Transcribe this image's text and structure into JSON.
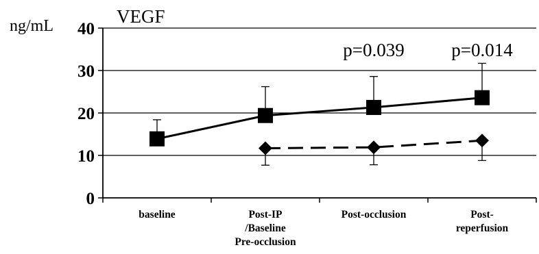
{
  "chart_data": {
    "type": "line",
    "title": "VEGF",
    "ylabel": "ng/mL",
    "ylim": [
      0,
      40
    ],
    "yticks": [
      0,
      10,
      20,
      30,
      40
    ],
    "grid": true,
    "categories": [
      [
        "baseline"
      ],
      [
        "Post-IP",
        "/Baseline",
        "Pre-occlusion"
      ],
      [
        "Post-occlusion"
      ],
      [
        "Post-",
        "reperfusion"
      ]
    ],
    "series": [
      {
        "marker": "square",
        "line_style": "solid",
        "color": "#000000",
        "values": [
          13.9,
          19.4,
          21.3,
          23.6
        ],
        "error_upper": [
          18.4,
          26.2,
          28.6,
          31.7
        ]
      },
      {
        "marker": "diamond",
        "line_style": "dashed",
        "color": "#000000",
        "values": [
          null,
          11.7,
          11.9,
          13.5
        ],
        "error_lower": [
          null,
          7.7,
          7.8,
          8.8
        ]
      }
    ],
    "annotations": [
      {
        "category_index": 2,
        "text": "p=0.039"
      },
      {
        "category_index": 3,
        "text": "p=0.014"
      }
    ]
  }
}
